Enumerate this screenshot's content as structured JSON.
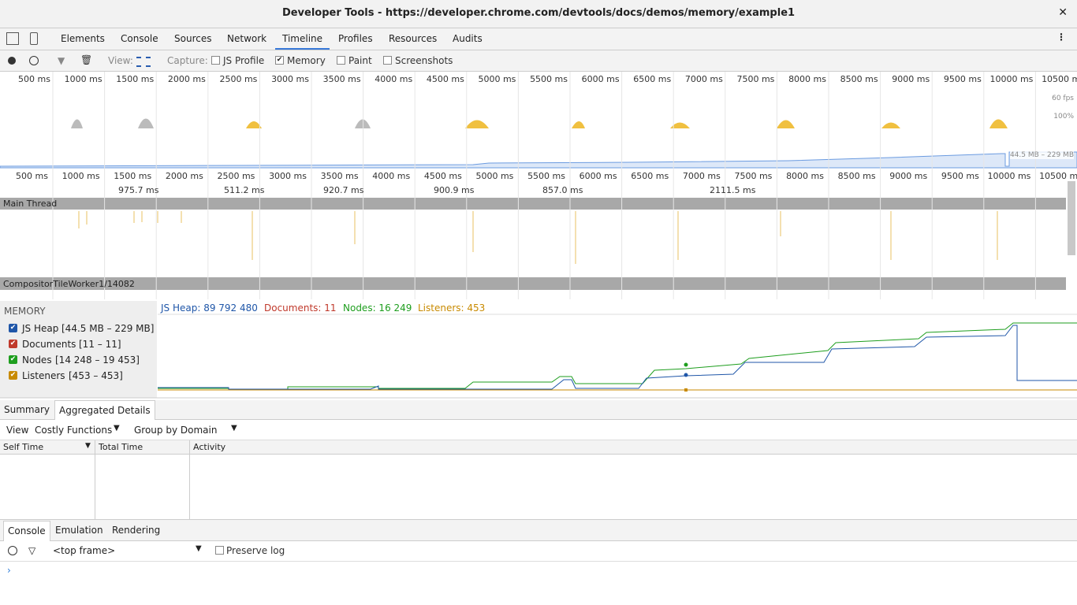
{
  "window": {
    "title": "Developer Tools - https://developer.chrome.com/devtools/docs/demos/memory/example1"
  },
  "tabs": {
    "items": [
      "Elements",
      "Console",
      "Sources",
      "Network",
      "Timeline",
      "Profiles",
      "Resources",
      "Audits"
    ],
    "active": 4
  },
  "toolbar": {
    "view_label": "View:",
    "capture_label": "Capture:",
    "checkboxes": [
      {
        "label": "JS Profile",
        "checked": false
      },
      {
        "label": "Memory",
        "checked": true
      },
      {
        "label": "Paint",
        "checked": false
      },
      {
        "label": "Screenshots",
        "checked": false
      }
    ]
  },
  "overview": {
    "ticks": [
      "500 ms",
      "1000 ms",
      "1500 ms",
      "2000 ms",
      "2500 ms",
      "3000 ms",
      "3500 ms",
      "4000 ms",
      "4500 ms",
      "5000 ms",
      "5500 ms",
      "6000 ms",
      "6500 ms",
      "7000 ms",
      "7500 ms",
      "8000 ms",
      "8500 ms",
      "9000 ms",
      "9500 ms",
      "10000 ms",
      "10500 ms"
    ],
    "fps_label": "60 fps",
    "cpu_label": "100%",
    "memory_label": "44.5 MB – 229 MB"
  },
  "frames": [
    {
      "label": "975.7 ms"
    },
    {
      "label": "511.2 ms"
    },
    {
      "label": "920.7 ms"
    },
    {
      "label": "900.9 ms"
    },
    {
      "label": "857.0 ms"
    },
    {
      "label": "2111.5 ms"
    }
  ],
  "threads": [
    "Main Thread",
    "CompositorTileWorker1/14082"
  ],
  "memory": {
    "header": "MEMORY",
    "counters": [
      {
        "label": "JS Heap",
        "range": "[44.5 MB – 229 MB]",
        "color": "#1f56a8"
      },
      {
        "label": "Documents",
        "range": "[11 – 11]",
        "color": "#c0392b"
      },
      {
        "label": "Nodes",
        "range": "[14 248 – 19 453]",
        "color": "#1e9e1e"
      },
      {
        "label": "Listeners",
        "range": "[453 – 453]",
        "color": "#c88a00"
      }
    ],
    "status": [
      "JS Heap: 89 792 480",
      "Documents: 11",
      "Nodes: 16 249",
      "Listeners: 453"
    ]
  },
  "details": {
    "tabs": [
      "Summary",
      "Aggregated Details"
    ],
    "active": 1,
    "view_label": "View",
    "view_select": "Costly Functions",
    "group_select": "Group by Domain",
    "columns": [
      "Self Time",
      "Total Time",
      "Activity"
    ]
  },
  "drawer": {
    "tabs": [
      "Console",
      "Emulation",
      "Rendering"
    ],
    "active": 0,
    "frame_select": "<top frame>",
    "preserve_log": "Preserve log"
  }
}
